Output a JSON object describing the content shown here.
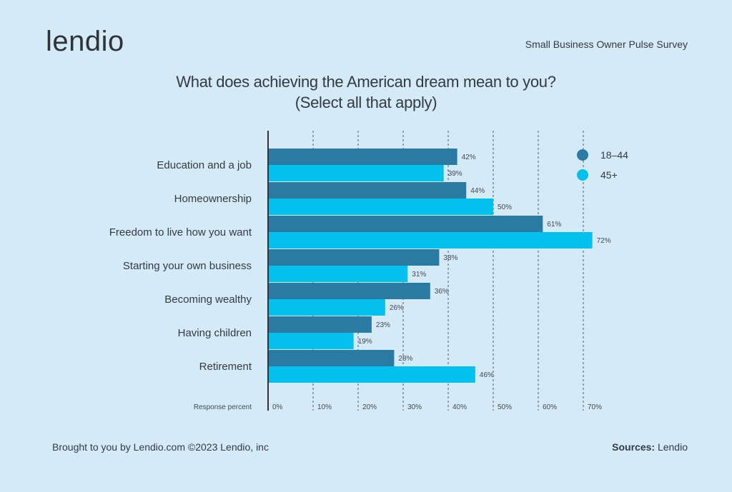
{
  "brand": {
    "logo_text": "lendio"
  },
  "header": {
    "survey_name": "Small Business Owner Pulse Survey"
  },
  "footer": {
    "left_text": "Brought to you by Lendio.com ©2023 Lendio, inc",
    "sources_label": "Sources:",
    "sources_value": "Lendio"
  },
  "chart_data": {
    "type": "bar",
    "orientation": "horizontal",
    "title": "What does achieving the American dream mean to you?",
    "subtitle": "(Select all that apply)",
    "xlabel": "Response percent",
    "ylabel": "",
    "xlim": [
      0,
      70
    ],
    "ticks": [
      0,
      10,
      20,
      30,
      40,
      50,
      60,
      70
    ],
    "tick_labels": [
      "0%",
      "10%",
      "20%",
      "30%",
      "40%",
      "50%",
      "60%",
      "70%"
    ],
    "grid": "vertical dashed",
    "legend_position": "top-right",
    "categories": [
      "Education and a job",
      "Homeownership",
      "Freedom to live how you want",
      "Starting your own business",
      "Becoming wealthy",
      "Having children",
      "Retirement"
    ],
    "series": [
      {
        "name": "18–44",
        "color": "#2a7aa3",
        "values": [
          42,
          44,
          61,
          38,
          36,
          23,
          28
        ]
      },
      {
        "name": "45+",
        "color": "#04c0ee",
        "values": [
          39,
          50,
          72,
          31,
          26,
          19,
          46
        ]
      }
    ]
  }
}
